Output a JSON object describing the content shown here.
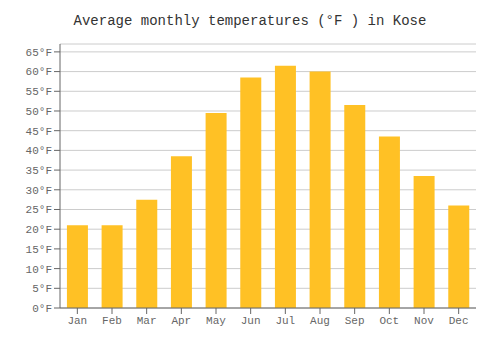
{
  "chart_data": {
    "type": "bar",
    "title": "Average monthly temperatures (°F ) in Kose",
    "categories": [
      "Jan",
      "Feb",
      "Mar",
      "Apr",
      "May",
      "Jun",
      "Jul",
      "Aug",
      "Sep",
      "Oct",
      "Nov",
      "Dec"
    ],
    "values": [
      21,
      21,
      27.5,
      38.5,
      49.5,
      58.5,
      61.5,
      60,
      51.5,
      43.5,
      33.5,
      26
    ],
    "color": "#FFC125",
    "ylim": [
      0,
      67
    ],
    "yticks": [
      {
        "value": 0,
        "label": "0°F"
      },
      {
        "value": 5,
        "label": "5°F"
      },
      {
        "value": 10,
        "label": "10°F"
      },
      {
        "value": 15,
        "label": "15°F"
      },
      {
        "value": 20,
        "label": "20°F"
      },
      {
        "value": 25,
        "label": "25°F"
      },
      {
        "value": 30,
        "label": "30°F"
      },
      {
        "value": 35,
        "label": "35°F"
      },
      {
        "value": 40,
        "label": "40°F"
      },
      {
        "value": 45,
        "label": "45°F"
      },
      {
        "value": 50,
        "label": "50°F"
      },
      {
        "value": 55,
        "label": "55°F"
      },
      {
        "value": 60,
        "label": "60°F"
      },
      {
        "value": 65,
        "label": "65°F"
      }
    ],
    "grid": true
  }
}
